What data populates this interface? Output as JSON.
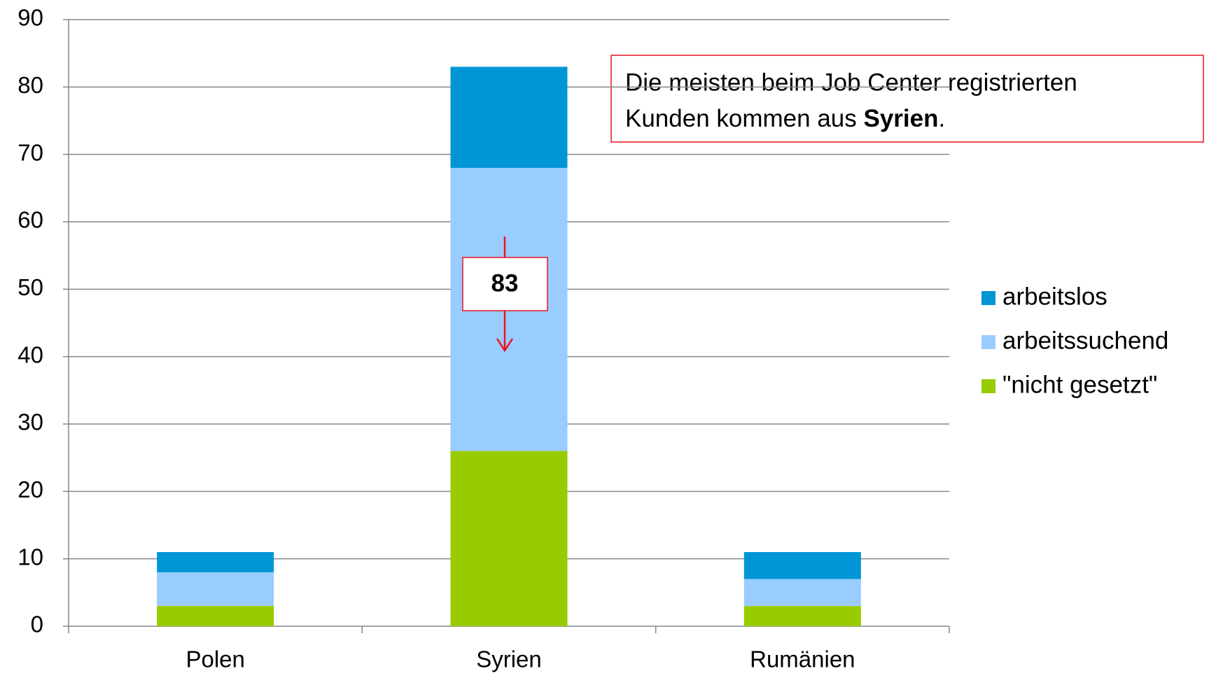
{
  "chart_data": {
    "type": "stacked_bar",
    "categories": [
      "Polen",
      "Syrien",
      "Rumänien"
    ],
    "series": [
      {
        "name": "\"nicht gesetzt\"",
        "color": "#99cc00",
        "values": [
          3,
          26,
          3
        ]
      },
      {
        "name": "arbeitssuchend",
        "color": "#99ccff",
        "values": [
          5,
          42,
          4
        ]
      },
      {
        "name": "arbeitslos",
        "color": "#0096d6",
        "values": [
          3,
          15,
          4
        ]
      }
    ],
    "ylim": [
      0,
      90
    ],
    "yticks": [
      0,
      10,
      20,
      30,
      40,
      50,
      60,
      70,
      80,
      90
    ],
    "grid": true,
    "legend": "right",
    "annotation": [
      "Die meisten beim Job Center registrierten",
      "Kunden kommen aus ",
      "Syrien",
      "."
    ],
    "callout": {
      "category": "Syrien",
      "value": 83
    }
  }
}
